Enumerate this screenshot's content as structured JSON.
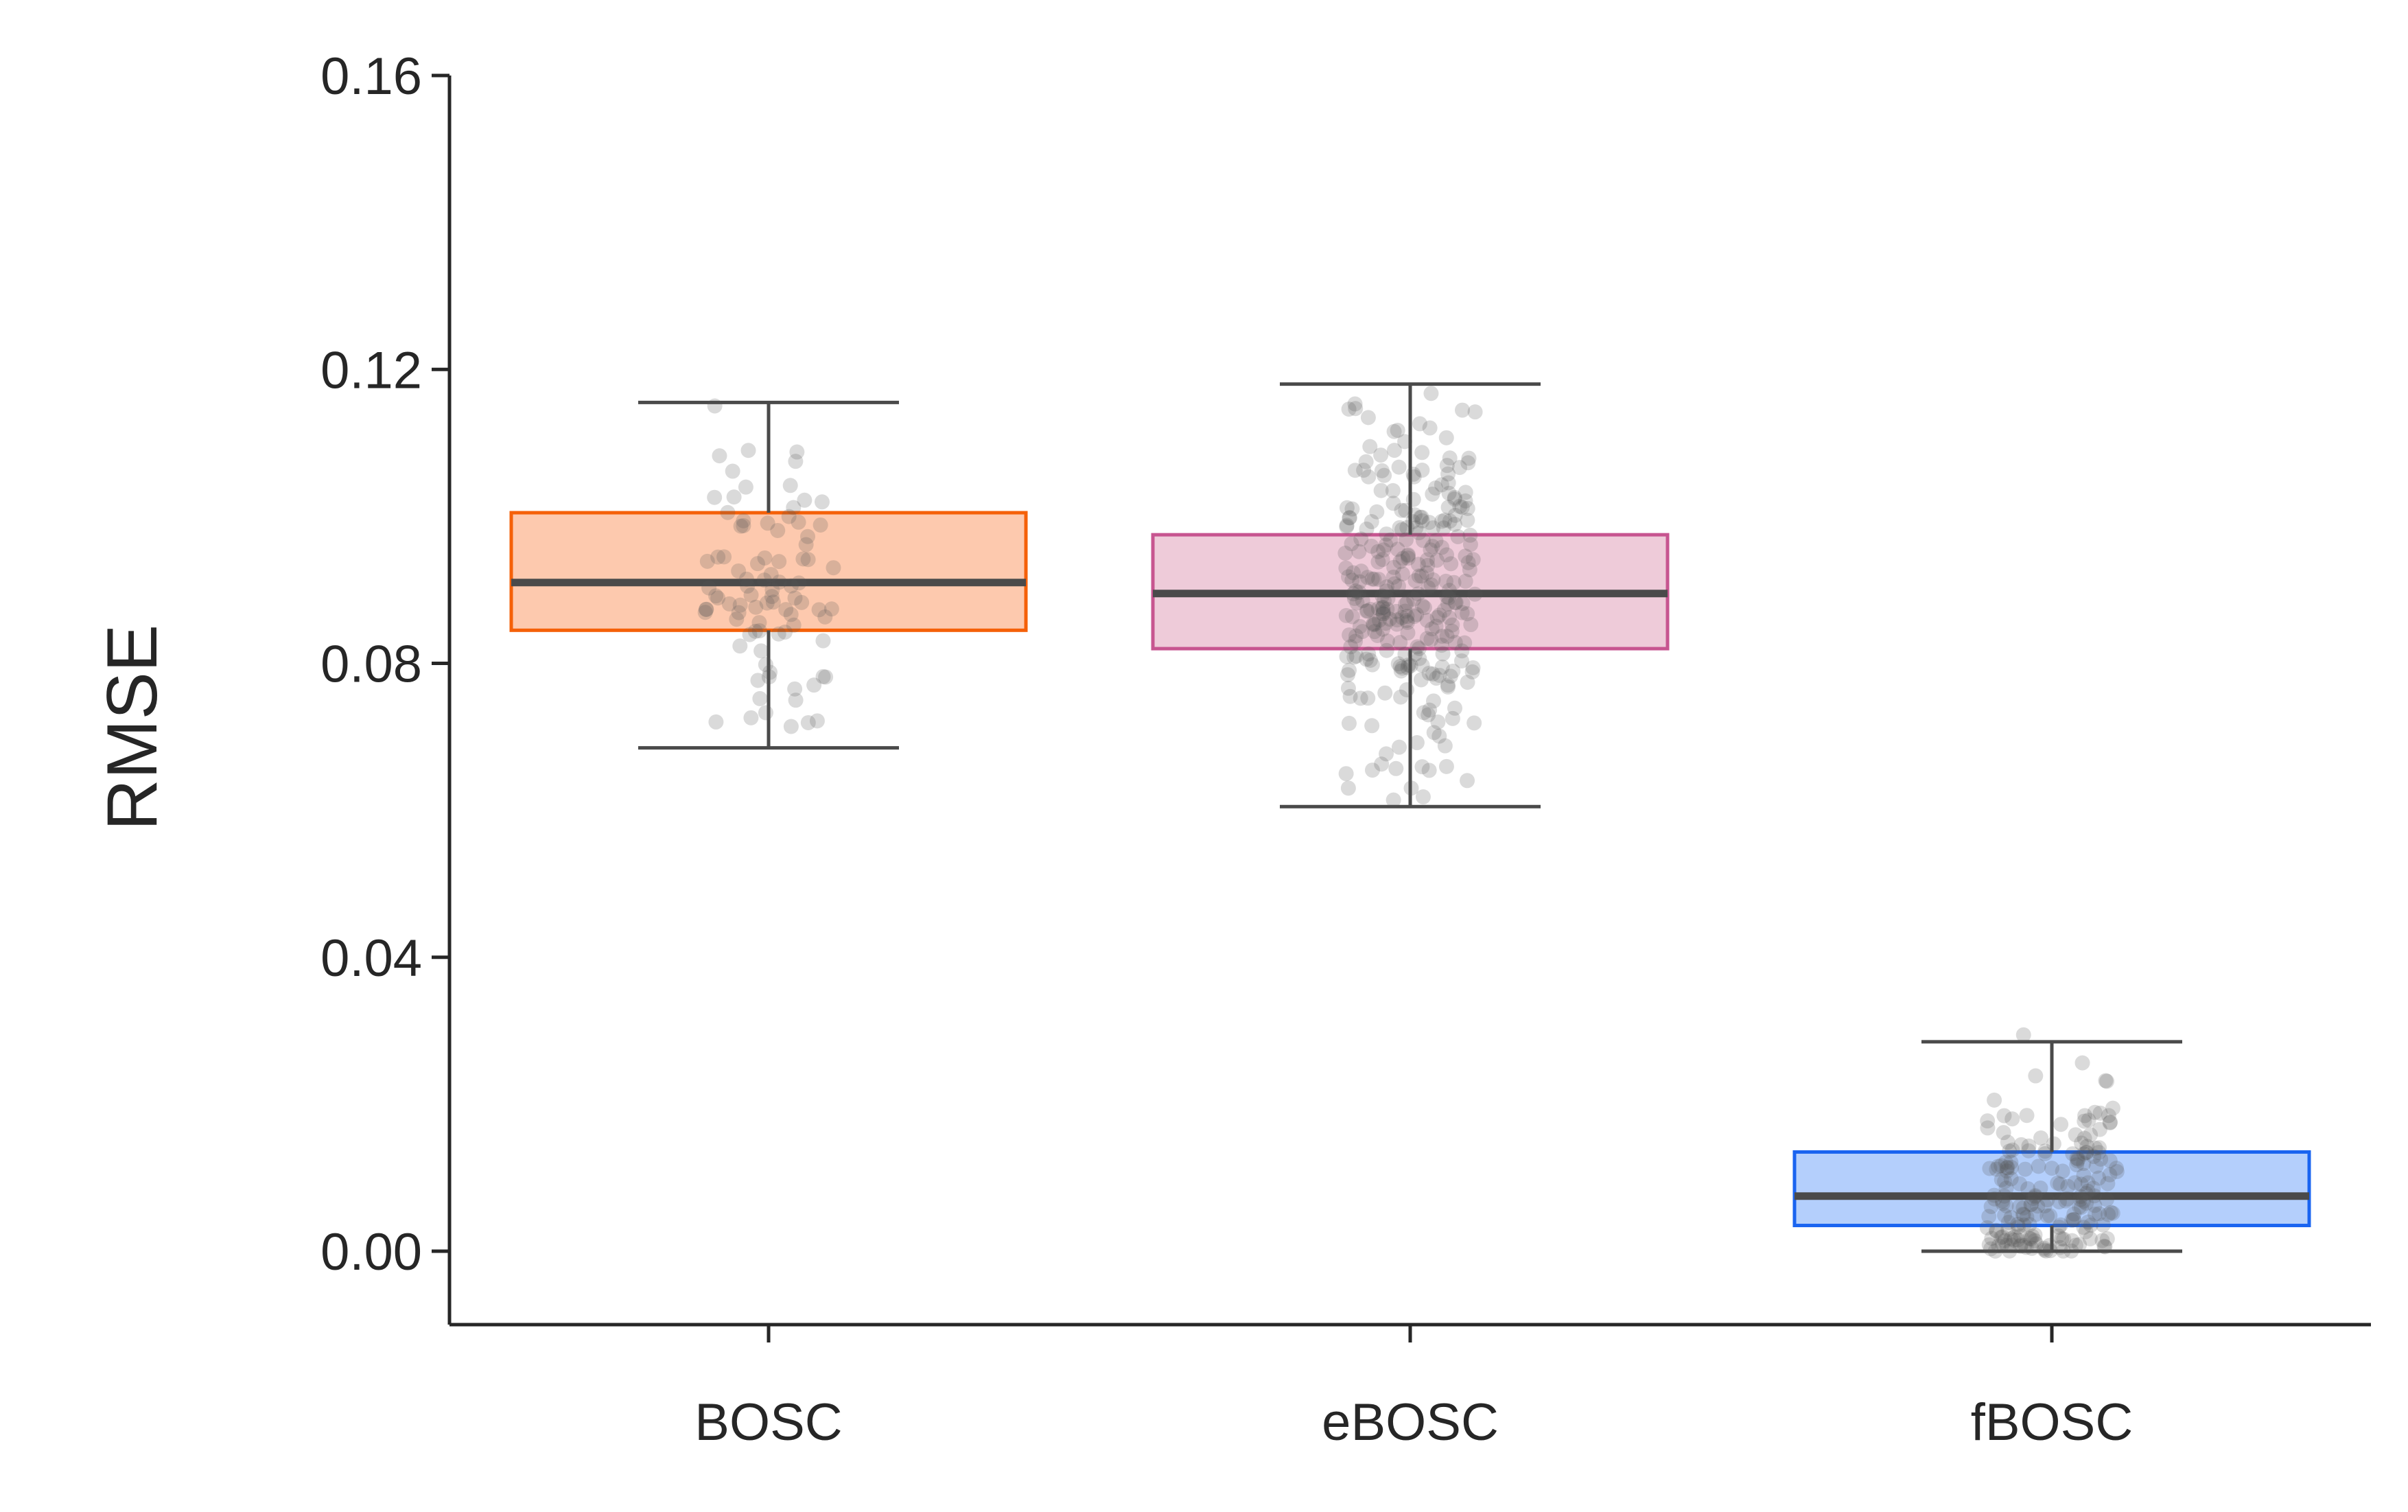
{
  "chart_data": {
    "type": "box",
    "title": "",
    "xlabel": "",
    "ylabel": "RMSE",
    "ylim": [
      -0.01,
      0.16
    ],
    "yticks": [
      {
        "value": 0.0,
        "label": "0.00"
      },
      {
        "value": 0.04,
        "label": "0.04"
      },
      {
        "value": 0.08,
        "label": "0.08"
      },
      {
        "value": 0.12,
        "label": "0.12"
      },
      {
        "value": 0.16,
        "label": "0.16"
      }
    ],
    "categories": [
      "BOSC",
      "eBOSC",
      "fBOSC"
    ],
    "grid": false,
    "boxes": [
      {
        "category": "BOSC",
        "whisker_low": 0.0685,
        "q1": 0.0845,
        "median": 0.091,
        "q3": 0.1005,
        "whisker_high": 0.1155,
        "fill": "#fdc9ae",
        "edge": "#f56008",
        "points_n": 90,
        "points_low": 0.069,
        "points_high": 0.116
      },
      {
        "category": "eBOSC",
        "whisker_low": 0.0605,
        "q1": 0.082,
        "median": 0.0895,
        "q3": 0.0975,
        "whisker_high": 0.118,
        "fill": "#eecbd9",
        "edge": "#c75590",
        "points_n": 300,
        "points_low": 0.0605,
        "points_high": 0.118
      },
      {
        "category": "fBOSC",
        "whisker_low": 0.0,
        "q1": 0.0035,
        "median": 0.0075,
        "q3": 0.0135,
        "whisker_high": 0.0285,
        "fill": "#b4cffc",
        "edge": "#1a64f0",
        "points_n": 200,
        "points_low": 0.0,
        "points_high": 0.031
      }
    ],
    "colors": {
      "axis": "#262626",
      "median": "#4a4a4a",
      "whisker": "#4a4a4a",
      "points": "#555555"
    }
  }
}
